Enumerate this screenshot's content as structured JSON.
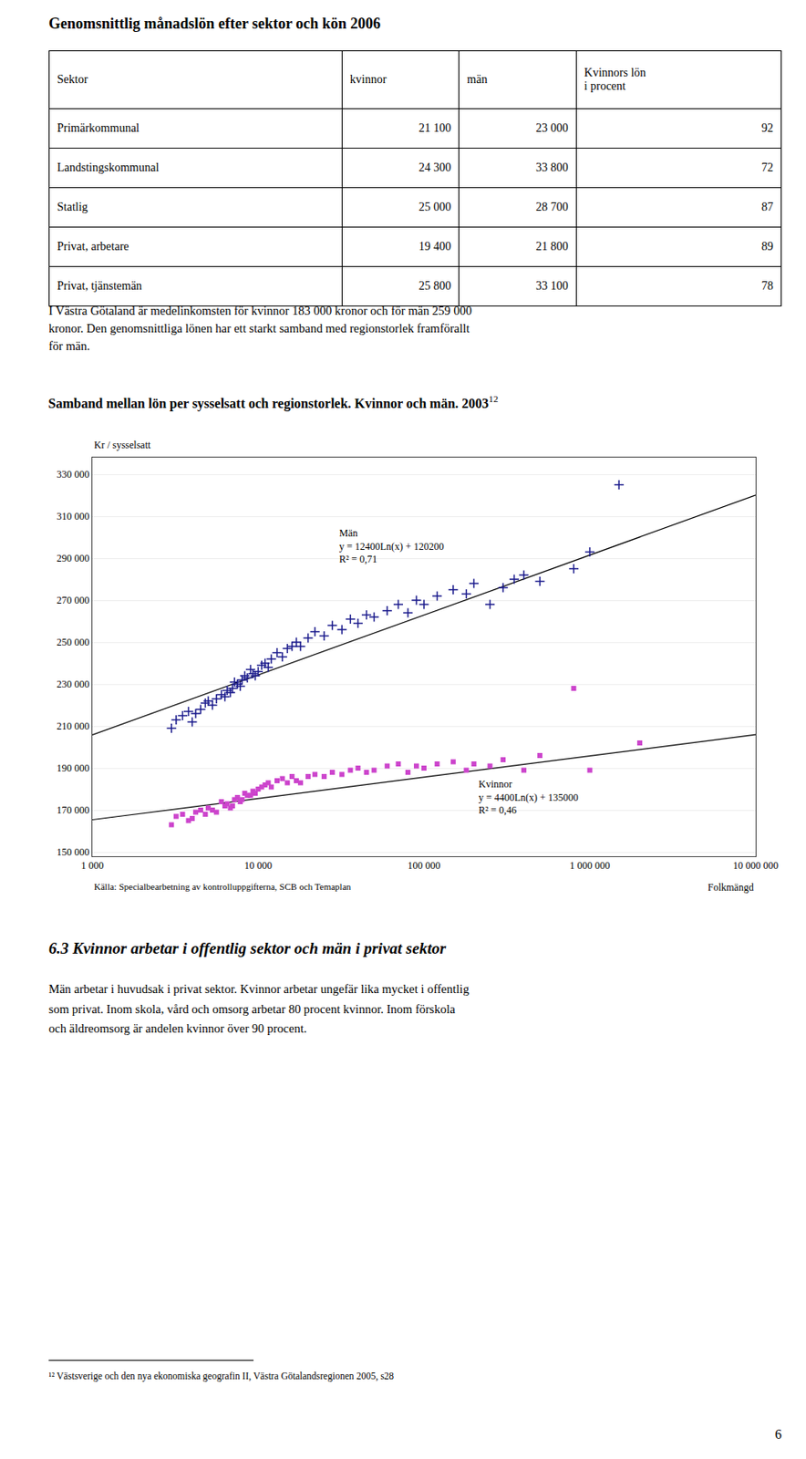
{
  "title": "Genomsnittlig månadslön efter sektor och kön 2006",
  "table": {
    "headers": [
      "Sektor",
      "kvinnor",
      "män",
      "Kvinnors lön\ni procent"
    ],
    "rows": [
      [
        "Primärkommunal",
        "21 100",
        "23 000",
        "92"
      ],
      [
        "Landstingskommunal",
        "24 300",
        "33 800",
        "72"
      ],
      [
        "Statlig",
        "25 000",
        "28 700",
        "87"
      ],
      [
        "Privat, arbetare",
        "19 400",
        "21 800",
        "89"
      ],
      [
        "Privat, tjänstemän",
        "25 800",
        "33 100",
        "78"
      ]
    ]
  },
  "paragraphs": [
    "I Västra Götaland är medelinkomsten för kvinnor 183 000 kronor och för män 259 000",
    "kronor. Den genomsnittliga lönen har ett starkt samband med regionstorlek framförallt",
    "för män."
  ],
  "chart_data": {
    "type": "scatter",
    "title": "Samband mellan lön per sysselsatt och regionstorlek. Kvinnor och män. 2003",
    "title_superscript": "12",
    "y_label": "Kr / sysselsatt",
    "x_label": "Folkmängd",
    "source": "Källa: Specialbearbetning av kontrolluppgifterna, SCB och Temaplan",
    "log": "x",
    "grid": "y",
    "xlim": [
      1000,
      10000000
    ],
    "ylim": [
      148000,
      338000
    ],
    "xticks": [
      {
        "value": 1000,
        "label": "1 000"
      },
      {
        "value": 10000,
        "label": "10 000"
      },
      {
        "value": 100000,
        "label": "100 000"
      },
      {
        "value": 1000000,
        "label": "1 000 000"
      },
      {
        "value": 10000000,
        "label": "10 000 000"
      }
    ],
    "yticks": [
      {
        "value": 150000,
        "label": "150 000"
      },
      {
        "value": 170000,
        "label": "170 000"
      },
      {
        "value": 190000,
        "label": "190 000"
      },
      {
        "value": 210000,
        "label": "210 000"
      },
      {
        "value": 230000,
        "label": "230 000"
      },
      {
        "value": 250000,
        "label": "250 000"
      },
      {
        "value": 270000,
        "label": "270 000"
      },
      {
        "value": 290000,
        "label": "290 000"
      },
      {
        "value": 310000,
        "label": "310 000"
      },
      {
        "value": 330000,
        "label": "330 000"
      }
    ],
    "annotations": [
      "Män\ny = 12400Ln(x) + 120200\nR² = 0,71",
      "Kvinnor\ny = 4400Ln(x) + 135000\nR² = 0,46"
    ],
    "series": [
      {
        "type": "scatter",
        "marker": "plus",
        "color": "#1a1a8c",
        "x": [
          3000,
          3200,
          3500,
          3800,
          4000,
          4200,
          4500,
          4800,
          5000,
          5300,
          5600,
          6000,
          6300,
          6500,
          6800,
          7000,
          7200,
          7500,
          7800,
          8000,
          8300,
          8600,
          9000,
          9300,
          9600,
          10000,
          10500,
          11000,
          11500,
          12000,
          13000,
          14000,
          15000,
          16000,
          17000,
          18000,
          20000,
          22000,
          25000,
          28000,
          32000,
          36000,
          40000,
          45000,
          50000,
          60000,
          70000,
          80000,
          90000,
          100000,
          120000,
          150000,
          180000,
          200000,
          250000,
          300000,
          350000,
          400000,
          500000,
          800000,
          1000000,
          1500000
        ],
        "values": [
          209000,
          213000,
          215000,
          217000,
          212000,
          216000,
          218000,
          221000,
          222000,
          220000,
          223000,
          225000,
          224000,
          227000,
          226000,
          228000,
          231000,
          230000,
          229000,
          232000,
          234000,
          233000,
          237000,
          235000,
          234000,
          236000,
          239000,
          240000,
          238000,
          242000,
          245000,
          243000,
          247000,
          248000,
          250000,
          248000,
          252000,
          255000,
          253000,
          258000,
          256000,
          261000,
          259000,
          263000,
          262000,
          265000,
          268000,
          264000,
          270000,
          268000,
          272000,
          275000,
          273000,
          278000,
          268000,
          276000,
          280000,
          282000,
          279000,
          285000,
          293000,
          325000
        ]
      },
      {
        "type": "scatter",
        "marker": "square",
        "color": "#cc44cc",
        "x": [
          3000,
          3200,
          3500,
          3800,
          4000,
          4200,
          4500,
          4800,
          5000,
          5300,
          5600,
          6000,
          6300,
          6500,
          6800,
          7000,
          7200,
          7500,
          7800,
          8000,
          8300,
          8600,
          9000,
          9300,
          9600,
          10000,
          10500,
          11000,
          11500,
          12000,
          13000,
          14000,
          15000,
          16000,
          17000,
          18000,
          20000,
          22000,
          25000,
          28000,
          32000,
          36000,
          40000,
          45000,
          50000,
          60000,
          70000,
          80000,
          90000,
          100000,
          120000,
          150000,
          180000,
          200000,
          250000,
          300000,
          400000,
          500000,
          800000,
          1000000,
          2000000
        ],
        "values": [
          163000,
          167000,
          168000,
          165000,
          166000,
          169000,
          170000,
          168000,
          171000,
          170000,
          169000,
          174000,
          172000,
          173000,
          171000,
          172000,
          175000,
          176000,
          174000,
          175000,
          178000,
          177000,
          177000,
          179000,
          178000,
          180000,
          181000,
          182000,
          183000,
          181000,
          184000,
          185000,
          183000,
          186000,
          184000,
          183000,
          186000,
          187000,
          186000,
          188000,
          187000,
          189000,
          190000,
          188000,
          189000,
          191000,
          192000,
          188000,
          191000,
          190000,
          192000,
          193000,
          189000,
          192000,
          191000,
          194000,
          189000,
          196000,
          228000,
          189000,
          202000
        ]
      },
      {
        "type": "line",
        "line_style": "solid",
        "color": "#000000",
        "x": [
          1000,
          10000000
        ],
        "values": [
          205856.17,
          320064.39
        ]
      },
      {
        "type": "line",
        "line_style": "solid",
        "color": "#000000",
        "x": [
          1000,
          10000000
        ],
        "values": [
          165394.12,
          205919.62
        ]
      }
    ]
  },
  "section": {
    "title": "6.3 Kvinnor arbetar i offentlig sektor och män i privat sektor",
    "paragraphs": [
      "Män arbetar i huvudsak i privat sektor. Kvinnor arbetar ungefär lika mycket i offentlig",
      "som privat. Inom skola, vård och omsorg arbetar 80 procent kvinnor. Inom förskola",
      "och äldreomsorg är andelen kvinnor över 90 procent."
    ]
  },
  "footnote": "¹² Västsverige och den nya ekonomiska geografin II, Västra Götalandsregionen 2005, s28",
  "page_number": "6"
}
